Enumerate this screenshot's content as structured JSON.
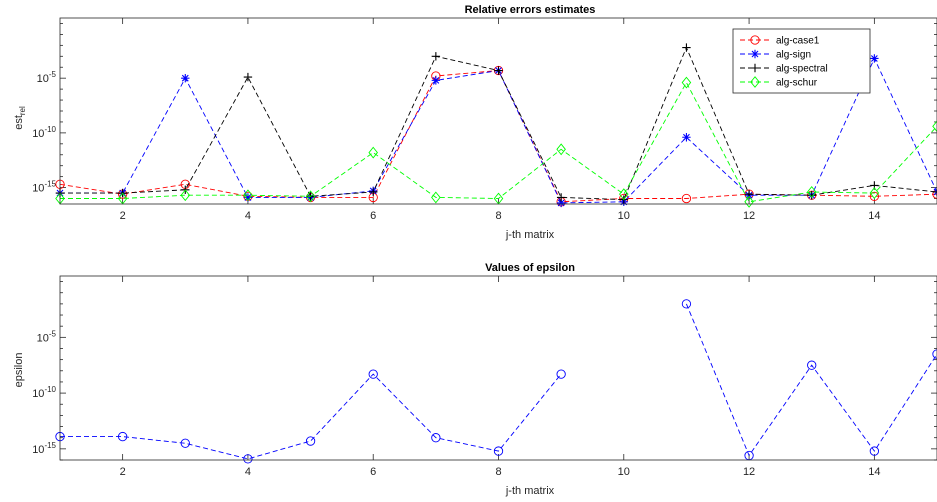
{
  "chart_data": [
    {
      "type": "line",
      "title": "Relative errors estimates",
      "xlabel": "j-th matrix",
      "ylabel": "est",
      "ylabel_sub": "rel",
      "xlim": [
        1,
        15
      ],
      "ylim_exp": [
        -16.5,
        0.5
      ],
      "yscale": "log",
      "x_ticks": [
        2,
        4,
        6,
        8,
        10,
        12,
        14
      ],
      "y_ticks": [
        {
          "exp": -15,
          "base": "10",
          "sup": "-15"
        },
        {
          "exp": -10,
          "base": "10",
          "sup": "-10"
        },
        {
          "exp": -5,
          "base": "10",
          "sup": "-5"
        }
      ],
      "legend_position": "top-right",
      "grid": false,
      "x": [
        1,
        2,
        3,
        4,
        5,
        6,
        7,
        8,
        9,
        10,
        11,
        12,
        13,
        14,
        15
      ],
      "series": [
        {
          "name": "alg-case1",
          "color": "#ff0000",
          "marker": "circle",
          "log10_values": [
            -14.7,
            -15.6,
            -14.7,
            -15.8,
            -15.9,
            -15.9,
            -4.8,
            -4.3,
            -16.3,
            -16.0,
            -16.0,
            -15.6,
            -15.7,
            -15.8,
            -15.6
          ]
        },
        {
          "name": "alg-sign",
          "color": "#0000ff",
          "marker": "asterisk",
          "log10_values": [
            -15.5,
            -15.5,
            -5.0,
            -15.9,
            -15.9,
            -15.3,
            -5.2,
            -4.3,
            -16.4,
            -16.3,
            -10.4,
            -15.7,
            -15.7,
            -3.2,
            -15.4
          ]
        },
        {
          "name": "alg-spectral",
          "color": "#000000",
          "marker": "plus",
          "log10_values": [
            -15.5,
            -15.5,
            -15.2,
            -4.9,
            -15.8,
            -15.4,
            -3.0,
            -4.3,
            -15.9,
            -16.1,
            -2.2,
            -15.6,
            -15.7,
            -14.8,
            -15.4
          ]
        },
        {
          "name": "alg-schur",
          "color": "#00ff00",
          "marker": "diamond",
          "log10_values": [
            -16.0,
            -16.0,
            -15.7,
            -15.7,
            -15.8,
            -11.8,
            -15.9,
            -16.0,
            -11.5,
            -15.6,
            -5.4,
            -16.3,
            -15.4,
            -15.5,
            -9.4
          ]
        }
      ]
    },
    {
      "type": "line",
      "title": "Values of epsilon",
      "xlabel": "j-th matrix",
      "ylabel": "epsilon",
      "xlim": [
        1,
        15
      ],
      "ylim_exp": [
        -16.0,
        0.5
      ],
      "yscale": "log",
      "x_ticks": [
        2,
        4,
        6,
        8,
        10,
        12,
        14
      ],
      "y_ticks": [
        {
          "exp": -15,
          "base": "10",
          "sup": "-15"
        },
        {
          "exp": -10,
          "base": "10",
          "sup": "-10"
        },
        {
          "exp": -5,
          "base": "10",
          "sup": "-5"
        }
      ],
      "grid": false,
      "x": [
        1,
        2,
        3,
        4,
        5,
        6,
        7,
        8,
        9,
        10,
        11,
        12,
        13,
        14,
        15
      ],
      "series": [
        {
          "name": "",
          "color": "#0000ff",
          "marker": "circle",
          "log10_values": [
            -13.9,
            -13.9,
            -14.5,
            -15.9,
            -14.3,
            -8.3,
            -14.0,
            -15.2,
            -8.3,
            null,
            -2.0,
            -15.6,
            -7.5,
            -15.2,
            -6.5
          ]
        }
      ]
    }
  ]
}
